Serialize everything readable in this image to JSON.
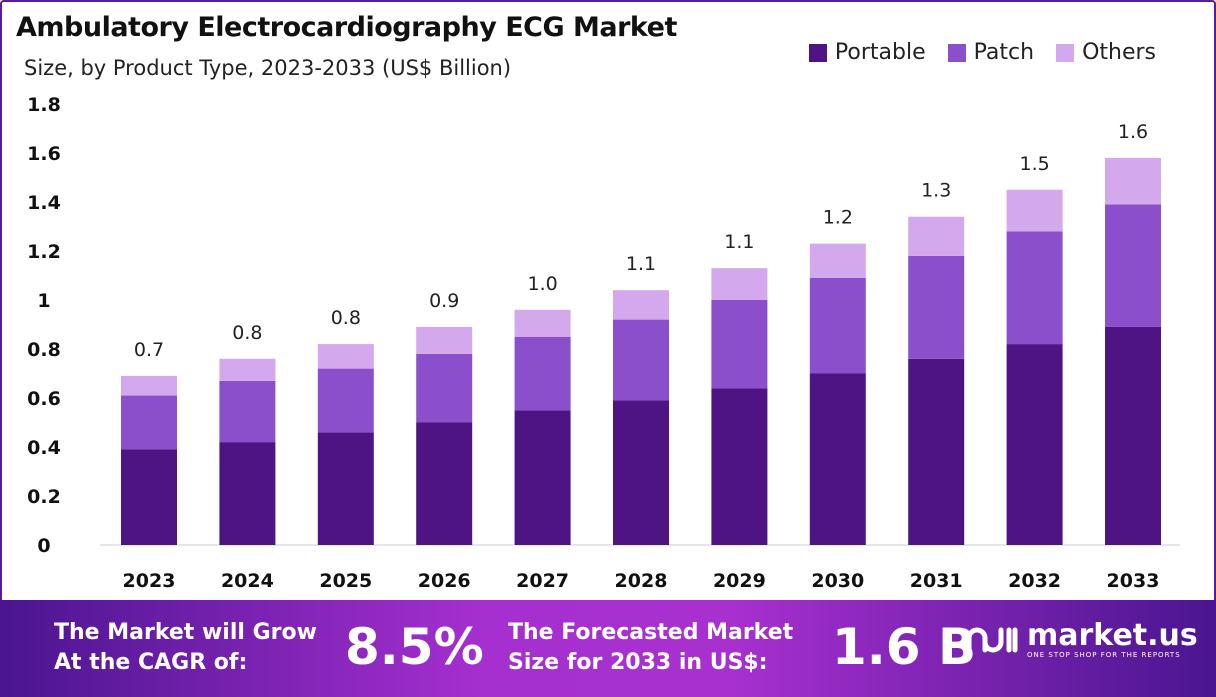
{
  "chart_data": {
    "type": "bar",
    "stacked": true,
    "title": "Ambulatory Electrocardiography ECG Market",
    "subtitle": "Size, by Product Type, 2023-2033 (US$ Billion)",
    "categories": [
      "2023",
      "2024",
      "2025",
      "2026",
      "2027",
      "2028",
      "2029",
      "2030",
      "2031",
      "2032",
      "2033"
    ],
    "series": [
      {
        "name": "Portable",
        "color": "#4f1484",
        "values": [
          0.39,
          0.42,
          0.46,
          0.5,
          0.55,
          0.59,
          0.64,
          0.7,
          0.76,
          0.82,
          0.89
        ]
      },
      {
        "name": "Patch",
        "color": "#8b4fcc",
        "values": [
          0.22,
          0.25,
          0.26,
          0.28,
          0.3,
          0.33,
          0.36,
          0.39,
          0.42,
          0.46,
          0.5
        ]
      },
      {
        "name": "Others",
        "color": "#d3a8ec",
        "values": [
          0.08,
          0.09,
          0.1,
          0.11,
          0.11,
          0.12,
          0.13,
          0.14,
          0.16,
          0.17,
          0.19
        ]
      }
    ],
    "totals_labels": [
      "0.7",
      "0.8",
      "0.8",
      "0.9",
      "1.0",
      "1.1",
      "1.1",
      "1.2",
      "1.3",
      "1.5",
      "1.6"
    ],
    "ylim": [
      0,
      1.8
    ],
    "yticks": [
      "0",
      "0.2",
      "0.4",
      "0.6",
      "0.8",
      "1",
      "1.2",
      "1.4",
      "1.6",
      "1.8"
    ],
    "grid": false,
    "legend_position": "top-right"
  },
  "footer": {
    "cagr_label_1": "The Market will Grow",
    "cagr_label_2": "At the CAGR of:",
    "cagr_value": "8.5%",
    "forecast_label_1": "The Forecasted Market",
    "forecast_label_2": "Size for 2033 in US$:",
    "forecast_value": "1.6 B",
    "logo_name": "market.us",
    "logo_tagline": "ONE STOP SHOP FOR THE REPORTS"
  }
}
